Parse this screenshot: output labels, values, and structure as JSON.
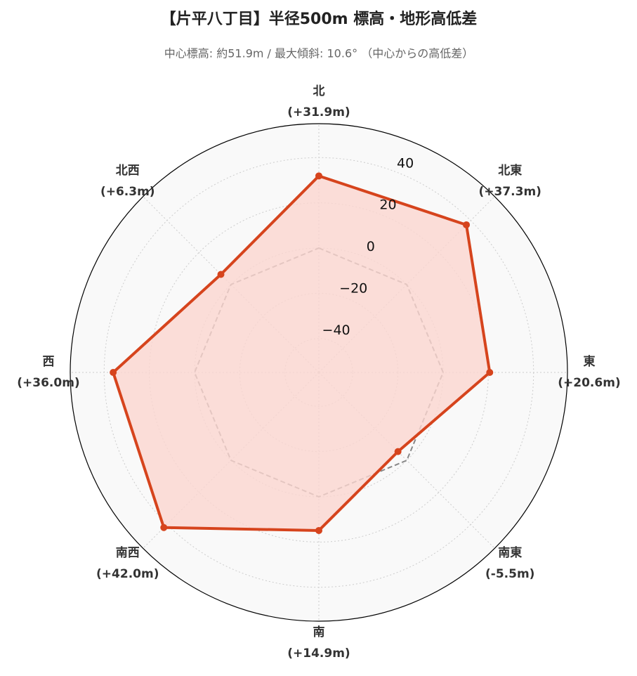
{
  "chart_data": {
    "type": "radar",
    "title": "【片平八丁目】半径500m 標高・地形高低差",
    "subtitle": "中心標高: 約51.9m / 最大傾斜: 10.6° （中心からの高低差）",
    "categories": [
      "北",
      "北東",
      "東",
      "南東",
      "南",
      "南西",
      "西",
      "北西"
    ],
    "values": [
      31.9,
      37.3,
      20.6,
      -5.5,
      14.9,
      42.0,
      36.0,
      6.3
    ],
    "value_labels": [
      "(+31.9m)",
      "(+37.3m)",
      "(+20.6m)",
      "(-5.5m)",
      "(+14.9m)",
      "(+42.0m)",
      "(+36.0m)",
      "(+6.3m)"
    ],
    "color": "#d6441d",
    "fill_color": "#fbd6cf",
    "baseline": 0,
    "ylim": [
      -55,
      55
    ],
    "yticks": [
      {
        "value": -40,
        "label": "−40"
      },
      {
        "value": -20,
        "label": "−20"
      },
      0,
      20,
      40
    ],
    "grid": true
  }
}
